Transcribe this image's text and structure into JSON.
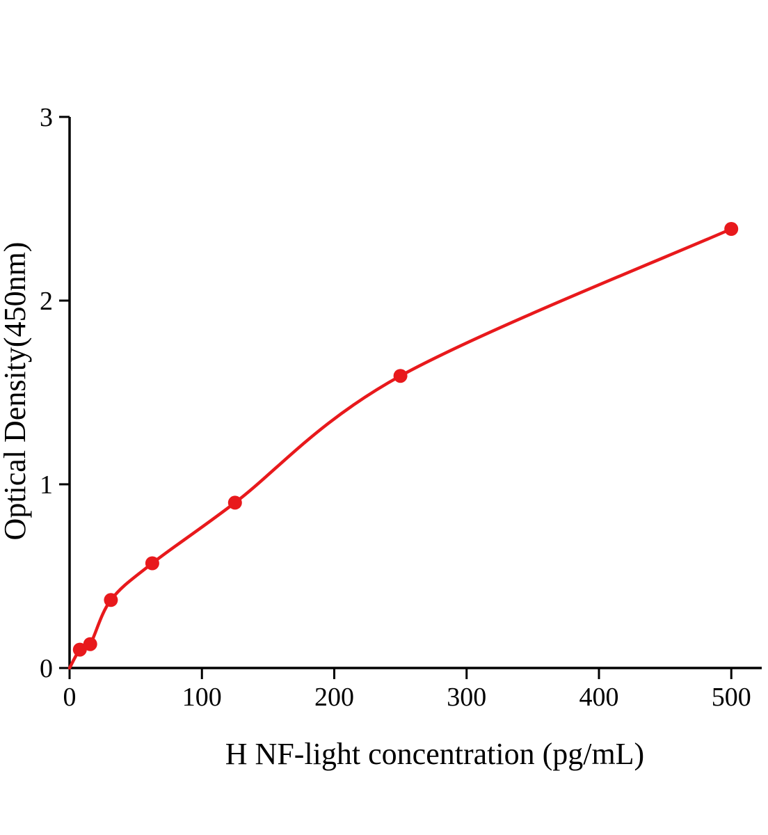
{
  "chart_data": {
    "type": "scatter",
    "title": "",
    "xlabel": "H NF-light concentration (pg/mL)",
    "ylabel": "Optical Density(450nm)",
    "x": [
      7.8,
      15.6,
      31.2,
      62.5,
      125,
      250,
      500
    ],
    "y": [
      0.1,
      0.13,
      0.37,
      0.57,
      0.9,
      1.59,
      2.39
    ],
    "curve_origin": {
      "x": 0,
      "y": 0
    },
    "xlim": [
      0,
      523
    ],
    "ylim": [
      0,
      3
    ],
    "xticks": [
      0,
      100,
      200,
      300,
      400,
      500
    ],
    "yticks": [
      0,
      1,
      2,
      3
    ],
    "grid": false,
    "legend": "none",
    "colors": {
      "series": "#e8191c",
      "axis": "#000000",
      "background": "#ffffff"
    }
  }
}
